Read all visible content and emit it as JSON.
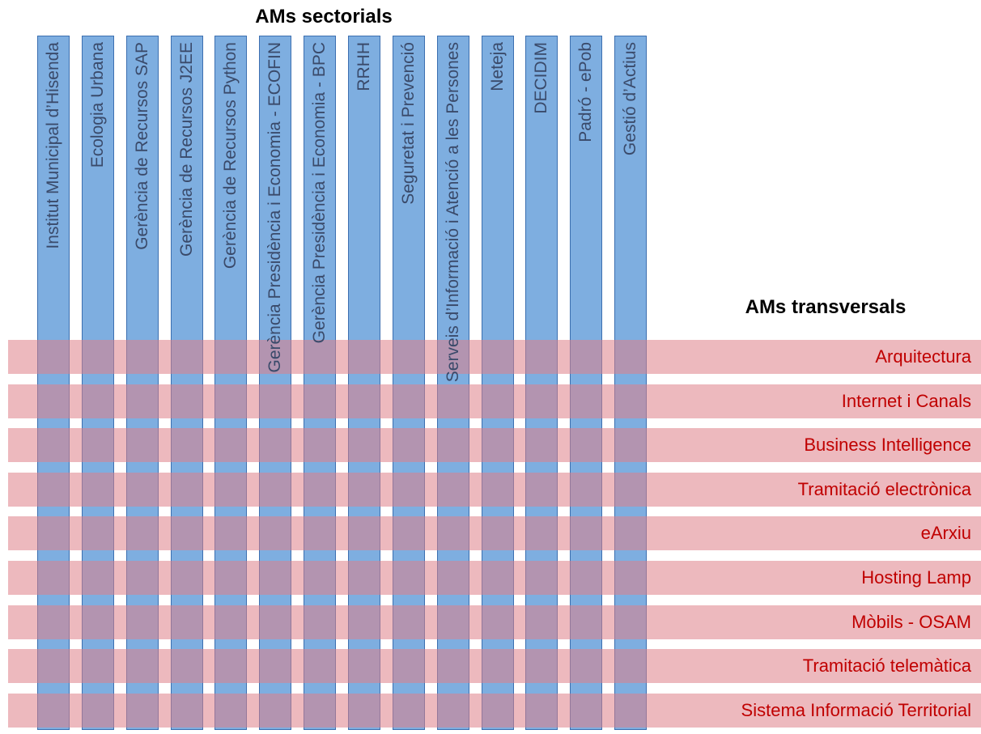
{
  "headings": {
    "sectorials": "AMs sectorials",
    "transversals": "AMs transversals"
  },
  "columns": [
    {
      "label": "Institut Municipal d’Hisenda"
    },
    {
      "label": "Ecologia Urbana"
    },
    {
      "label": "Gerència de Recursos SAP"
    },
    {
      "label": "Gerència de Recursos J2EE"
    },
    {
      "label": "Gerència de Recursos Python"
    },
    {
      "label": "Gerència Presidència i Economia - ECOFIN"
    },
    {
      "label": "Gerència Presidència i Economia - BPC"
    },
    {
      "label": "RRHH"
    },
    {
      "label": "Seguretat i Prevenció"
    },
    {
      "label": "Serveis d’Informació i Atenció a les Persones"
    },
    {
      "label": "Neteja"
    },
    {
      "label": "DECIDIM"
    },
    {
      "label": "Padró - ePob"
    },
    {
      "label": "Gestió d’Actius"
    }
  ],
  "rows": [
    {
      "label": "Arquitectura"
    },
    {
      "label": "Internet i Canals"
    },
    {
      "label": "Business Intelligence"
    },
    {
      "label": "Tramitació electrònica"
    },
    {
      "label": "eArxiu"
    },
    {
      "label": "Hosting Lamp"
    },
    {
      "label": "Mòbils - OSAM"
    },
    {
      "label": "Tramitació telemàtica"
    },
    {
      "label": "Sistema Informació Territorial"
    }
  ],
  "colors": {
    "column_fill": "#7eaee0",
    "column_border": "#3c6fb0",
    "row_fill": "#de8088",
    "row_text": "#c00000",
    "column_text": "#3a4a6a"
  }
}
